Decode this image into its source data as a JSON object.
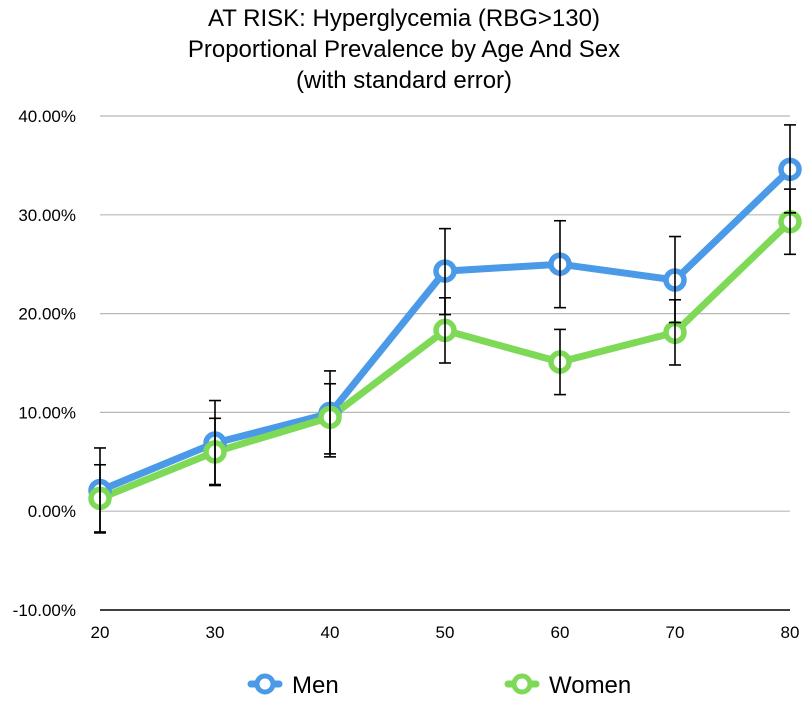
{
  "chart_data": {
    "type": "line",
    "title_lines": [
      "AT RISK: Hyperglycemia (RBG>130)",
      "Proportional Prevalence by Age And Sex",
      "(with standard error)"
    ],
    "xlabel": "",
    "ylabel": "",
    "x": [
      20,
      30,
      40,
      50,
      60,
      70,
      80
    ],
    "x_tick_labels": [
      "20",
      "30",
      "40",
      "50",
      "60",
      "70",
      "80"
    ],
    "ylim": [
      -10,
      40
    ],
    "y_ticks": [
      -10,
      0,
      10,
      20,
      30,
      40
    ],
    "y_tick_labels": [
      "-10.00%",
      "0.00%",
      "10.00%",
      "20.00%",
      "30.00%",
      "40.00%"
    ],
    "y_unit": "percent",
    "grid": true,
    "legend_position": "bottom",
    "series": [
      {
        "name": "Men",
        "color": "#4a9ae8",
        "values": [
          2.1,
          6.9,
          9.9,
          24.3,
          25.0,
          23.4,
          34.6
        ],
        "error_low": [
          -2.2,
          2.6,
          5.5,
          19.9,
          20.6,
          19.1,
          30.2
        ],
        "error_high": [
          6.4,
          11.2,
          14.2,
          28.6,
          29.4,
          27.8,
          39.1
        ]
      },
      {
        "name": "Women",
        "color": "#7ed957",
        "values": [
          1.3,
          6.0,
          9.5,
          18.3,
          15.1,
          18.1,
          29.3
        ],
        "error_low": [
          -2.1,
          2.7,
          5.8,
          15.0,
          11.8,
          14.8,
          26.0
        ],
        "error_high": [
          4.7,
          9.4,
          12.9,
          21.6,
          18.4,
          21.4,
          32.6
        ]
      }
    ]
  }
}
